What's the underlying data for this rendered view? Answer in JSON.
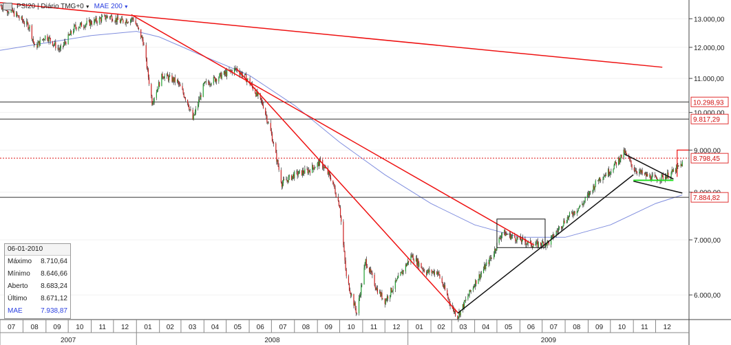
{
  "toolbar": {
    "instrument_label": "PSI20 | Diário TMG+0",
    "mae_label": "MAE 200",
    "dropdown_glyph": "▼"
  },
  "infobox": {
    "date": "06-01-2010",
    "rows": [
      {
        "label": "Máximo",
        "value": "8.710,64"
      },
      {
        "label": "Mínimo",
        "value": "8.646,66"
      },
      {
        "label": "Aberto",
        "value": "8.683,24"
      },
      {
        "label": "Último",
        "value": "8.671,12"
      },
      {
        "label": "MAE",
        "value": "7.938,87"
      }
    ]
  },
  "colors": {
    "up_candle": "#1f9e2e",
    "down_candle": "#cc1f1f",
    "trendline_red": "#ee1111",
    "trendline_black": "#111111",
    "mae": "#7f8dde",
    "support_green": "#22dd22",
    "dotted_level": "#dd1111"
  },
  "chart_data": {
    "type": "candlestick",
    "title": "PSI20 | Diário TMG+0",
    "y_scale": "log",
    "ylim": [
      5600,
      13700
    ],
    "y_ticks": [
      "6.000,00",
      "7.000,00",
      "8.000,00",
      "9.000,00",
      "10.000,00",
      "11.000,00",
      "12.000,00",
      "13.000,00"
    ],
    "y_tick_values": [
      6000,
      7000,
      8000,
      9000,
      10000,
      11000,
      12000,
      13000
    ],
    "x_range": [
      "2007-07",
      "2010-01"
    ],
    "x_month_ticks": [
      "07",
      "08",
      "09",
      "10",
      "11",
      "12",
      "01",
      "02",
      "03",
      "04",
      "05",
      "06",
      "07",
      "08",
      "09",
      "10",
      "11",
      "12",
      "01",
      "02",
      "03",
      "04",
      "05",
      "06",
      "07",
      "08",
      "09",
      "10",
      "11",
      "12"
    ],
    "x_years": [
      {
        "label": "2007",
        "start": "2007-07",
        "end": "2007-12"
      },
      {
        "label": "2008",
        "start": "2008-01",
        "end": "2008-12"
      },
      {
        "label": "2009",
        "start": "2009-01",
        "end": "2010-01"
      }
    ],
    "price_path": [
      [
        "2007-07-01",
        13500
      ],
      [
        "2007-07-20",
        13200
      ],
      [
        "2007-08-10",
        12700
      ],
      [
        "2007-08-17",
        12000
      ],
      [
        "2007-09-01",
        12400
      ],
      [
        "2007-09-20",
        11900
      ],
      [
        "2007-10-10",
        12700
      ],
      [
        "2007-11-05",
        12900
      ],
      [
        "2007-11-25",
        13100
      ],
      [
        "2007-12-10",
        12900
      ],
      [
        "2007-12-28",
        13000
      ],
      [
        "2008-01-10",
        12200
      ],
      [
        "2008-01-22",
        10300
      ],
      [
        "2008-02-05",
        11100
      ],
      [
        "2008-02-25",
        10900
      ],
      [
        "2008-03-10",
        10300
      ],
      [
        "2008-03-17",
        9800
      ],
      [
        "2008-04-01",
        10800
      ],
      [
        "2008-04-25",
        11100
      ],
      [
        "2008-05-15",
        11300
      ],
      [
        "2008-06-01",
        10900
      ],
      [
        "2008-06-20",
        10200
      ],
      [
        "2008-07-01",
        9400
      ],
      [
        "2008-07-15",
        8200
      ],
      [
        "2008-08-01",
        8400
      ],
      [
        "2008-08-20",
        8500
      ],
      [
        "2008-09-05",
        8700
      ],
      [
        "2008-09-20",
        8300
      ],
      [
        "2008-10-01",
        7700
      ],
      [
        "2008-10-10",
        6300
      ],
      [
        "2008-10-24",
        5700
      ],
      [
        "2008-11-05",
        6600
      ],
      [
        "2008-11-20",
        6100
      ],
      [
        "2008-12-01",
        5900
      ],
      [
        "2008-12-20",
        6300
      ],
      [
        "2009-01-06",
        6700
      ],
      [
        "2009-01-25",
        6400
      ],
      [
        "2009-02-10",
        6400
      ],
      [
        "2009-03-01",
        5800
      ],
      [
        "2009-03-09",
        5650
      ],
      [
        "2009-04-01",
        6200
      ],
      [
        "2009-04-25",
        6700
      ],
      [
        "2009-05-08",
        7150
      ],
      [
        "2009-06-01",
        7000
      ],
      [
        "2009-06-20",
        6900
      ],
      [
        "2009-07-10",
        6950
      ],
      [
        "2009-08-01",
        7400
      ],
      [
        "2009-08-25",
        7750
      ],
      [
        "2009-09-15",
        8300
      ],
      [
        "2009-10-01",
        8500
      ],
      [
        "2009-10-20",
        8950
      ],
      [
        "2009-11-01",
        8550
      ],
      [
        "2009-11-15",
        8400
      ],
      [
        "2009-12-01",
        8300
      ],
      [
        "2009-12-20",
        8400
      ],
      [
        "2010-01-06",
        8671
      ]
    ],
    "mae_200": [
      [
        "2007-07-01",
        11900
      ],
      [
        "2007-09-01",
        12150
      ],
      [
        "2007-11-01",
        12400
      ],
      [
        "2008-01-01",
        12550
      ],
      [
        "2008-02-01",
        12350
      ],
      [
        "2008-04-01",
        11700
      ],
      [
        "2008-06-01",
        11100
      ],
      [
        "2008-08-01",
        10200
      ],
      [
        "2008-10-01",
        9200
      ],
      [
        "2008-12-01",
        8400
      ],
      [
        "2009-02-01",
        7750
      ],
      [
        "2009-04-01",
        7300
      ],
      [
        "2009-06-01",
        7050
      ],
      [
        "2009-08-01",
        7050
      ],
      [
        "2009-10-01",
        7300
      ],
      [
        "2009-12-01",
        7750
      ],
      [
        "2010-01-06",
        7939
      ]
    ],
    "horizontal_levels": [
      {
        "value": 10298.93,
        "label": "10.298,93",
        "style": "solid"
      },
      {
        "value": 9817.29,
        "label": "9.817,29",
        "style": "solid"
      },
      {
        "value": 8798.45,
        "label": "8.798,45",
        "style": "dotted-red"
      },
      {
        "value": 7884.82,
        "label": "7.884,82",
        "style": "solid"
      }
    ],
    "trendlines": [
      {
        "color": "red",
        "from": [
          "2007-07-01",
          13600
        ],
        "to": [
          "2009-12-10",
          11350
        ]
      },
      {
        "color": "red",
        "from": [
          "2007-12-25",
          13150
        ],
        "to": [
          "2009-06-20",
          6900
        ]
      },
      {
        "color": "red",
        "from": [
          "2008-05-15",
          11300
        ],
        "to": [
          "2009-03-10",
          5700
        ]
      },
      {
        "color": "black",
        "from": [
          "2009-03-09",
          5700
        ],
        "to": [
          "2009-11-01",
          8400
        ]
      },
      {
        "color": "black",
        "from": [
          "2009-10-20",
          8900
        ],
        "to": [
          "2009-12-25",
          8300
        ]
      },
      {
        "color": "black",
        "from": [
          "2009-11-01",
          8250
        ],
        "to": [
          "2010-01-06",
          7980
        ]
      },
      {
        "color": "green",
        "from": [
          "2009-11-01",
          8270
        ],
        "to": [
          "2009-12-25",
          8270
        ]
      }
    ],
    "rectangles": [
      {
        "color": "black",
        "from": [
          "2009-05-01",
          7420
        ],
        "to": [
          "2009-07-05",
          6850
        ]
      }
    ],
    "highlight_box": {
      "color": "red",
      "from": [
        "2009-12-30",
        9000
      ],
      "to": [
        "2010-01-06",
        8350
      ]
    }
  }
}
